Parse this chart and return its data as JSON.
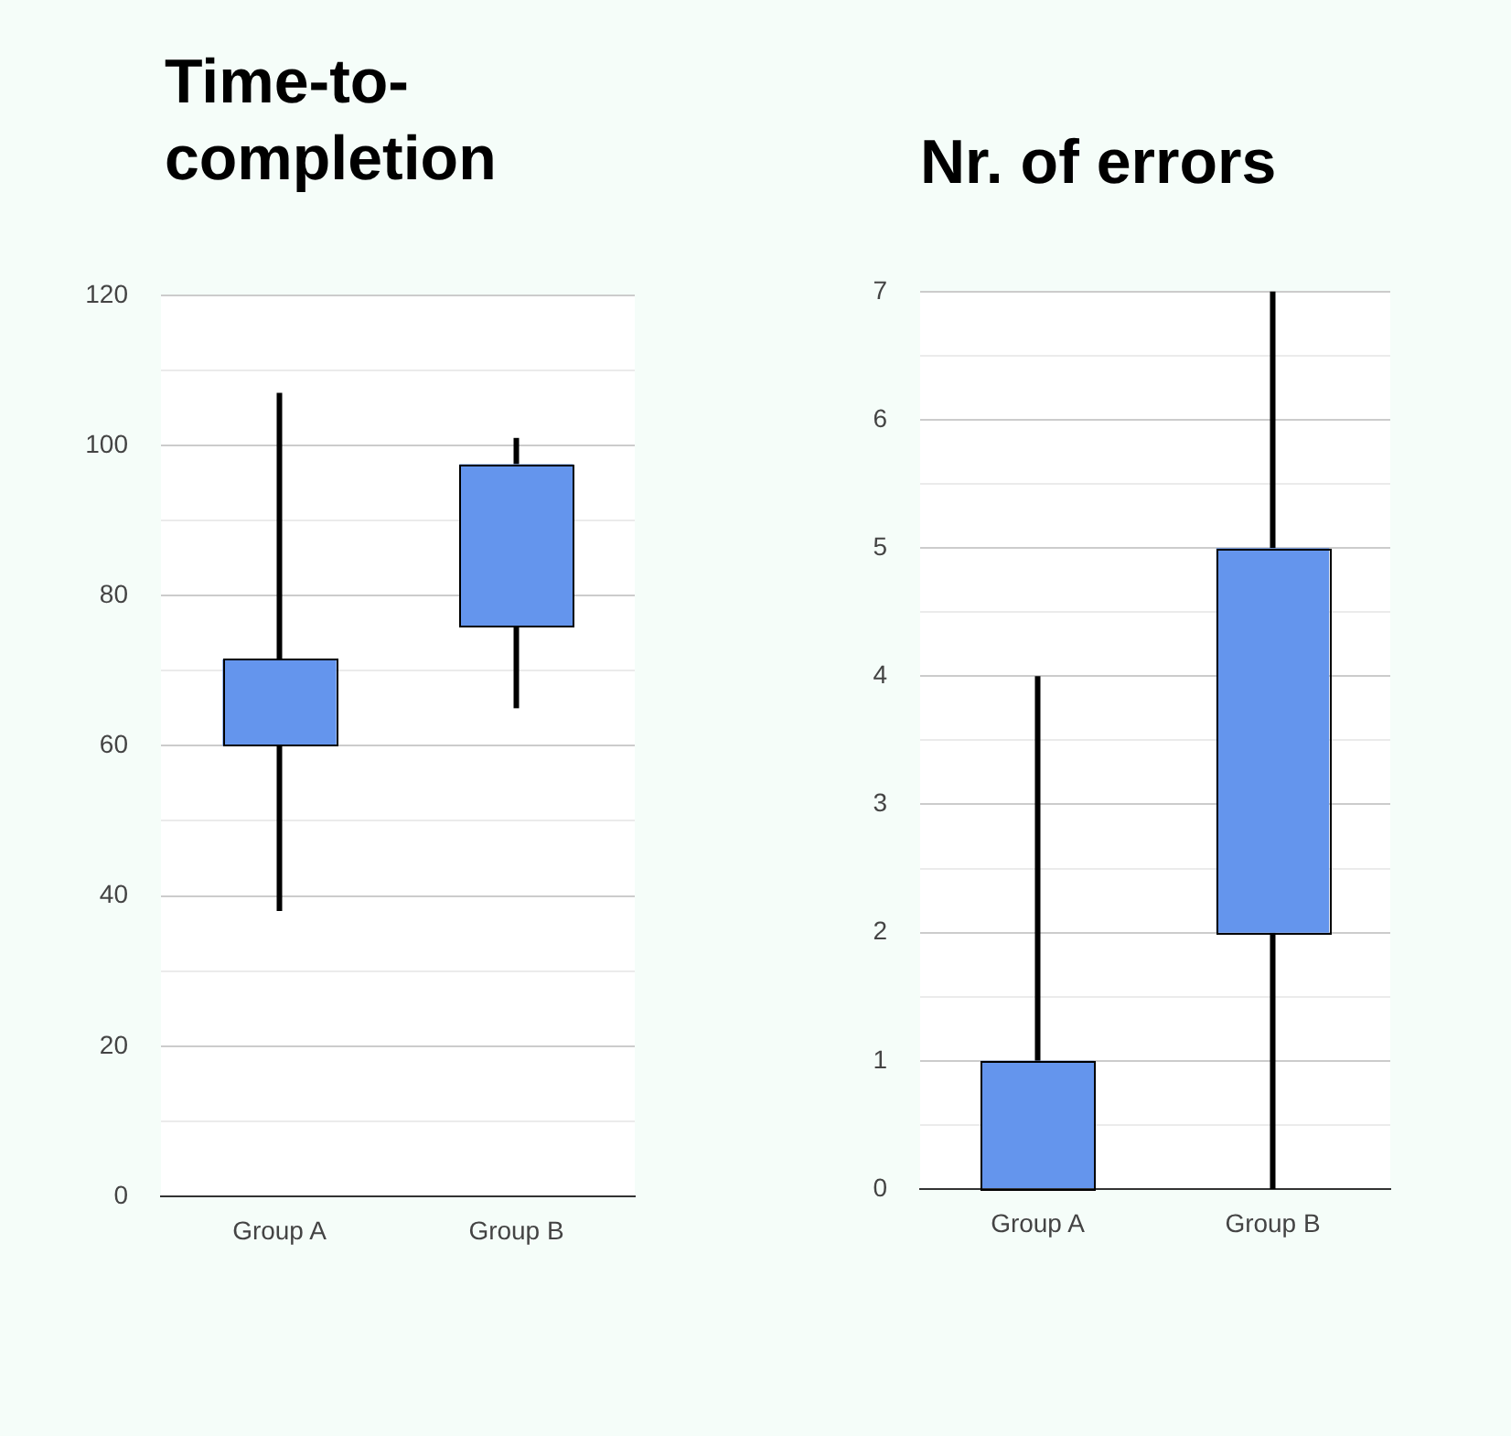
{
  "chart_data": [
    {
      "type": "candlestick",
      "title": "Time-to-completion",
      "categories": [
        "Group A",
        "Group B"
      ],
      "color": "#6495ed",
      "ohlc": [
        [
          60,
          107,
          38,
          71.5
        ],
        [
          76,
          101,
          65,
          97.5
        ]
      ],
      "ylim": [
        0,
        120
      ],
      "yticks": [
        0,
        {
          "value": 10,
          "label": null
        },
        20,
        {
          "value": 30,
          "label": null
        },
        40,
        {
          "value": 50,
          "label": null
        },
        60,
        {
          "value": 70,
          "label": null
        },
        80,
        {
          "value": 90,
          "label": null
        },
        100,
        {
          "value": 110,
          "label": null
        },
        120
      ],
      "grid": true
    },
    {
      "type": "candlestick",
      "title": "Nr. of errors",
      "categories": [
        "Group A",
        "Group B"
      ],
      "color": "#6495ed",
      "ohlc": [
        [
          0,
          4,
          0,
          1
        ],
        [
          2,
          7,
          0,
          5
        ]
      ],
      "ylim": [
        0,
        7
      ],
      "yticks": [
        0,
        {
          "value": 0.5,
          "label": null
        },
        1,
        {
          "value": 1.5,
          "label": null
        },
        2,
        {
          "value": 2.5,
          "label": null
        },
        3,
        {
          "value": 3.5,
          "label": null
        },
        4,
        {
          "value": 4.5,
          "label": null
        },
        5,
        {
          "value": 5.5,
          "label": null
        },
        6,
        {
          "value": 6.5,
          "label": null
        },
        7
      ],
      "grid": true
    }
  ]
}
